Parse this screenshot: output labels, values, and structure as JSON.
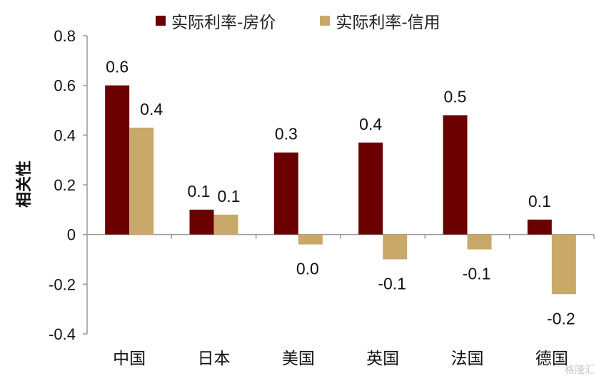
{
  "chart_data": {
    "type": "bar",
    "categories": [
      "中国",
      "日本",
      "美国",
      "英国",
      "法国",
      "德国"
    ],
    "series": [
      {
        "name": "实际利率-房价",
        "values": [
          0.6,
          0.1,
          0.33,
          0.37,
          0.48,
          0.06
        ],
        "labels": [
          "0.6",
          "0.1",
          "0.3",
          "0.4",
          "0.5",
          "0.1"
        ],
        "color": "#6b0000"
      },
      {
        "name": "实际利率-信用",
        "values": [
          0.43,
          0.08,
          -0.04,
          -0.1,
          -0.06,
          -0.24
        ],
        "labels": [
          "0.4",
          "0.1",
          "0.0",
          "-0.1",
          "-0.1",
          "-0.2"
        ],
        "color": "#c8a96a"
      }
    ],
    "ylabel": "相关性",
    "ylim": [
      -0.4,
      0.8
    ],
    "yticks": [
      "0.8",
      "0.6",
      "0.4",
      "0.2",
      "0",
      "-0.2",
      "-0.4"
    ],
    "ytick_values": [
      0.8,
      0.6,
      0.4,
      0.2,
      0,
      -0.2,
      -0.4
    ],
    "legend_position": "top",
    "grid": false
  },
  "watermark": "格隆汇"
}
